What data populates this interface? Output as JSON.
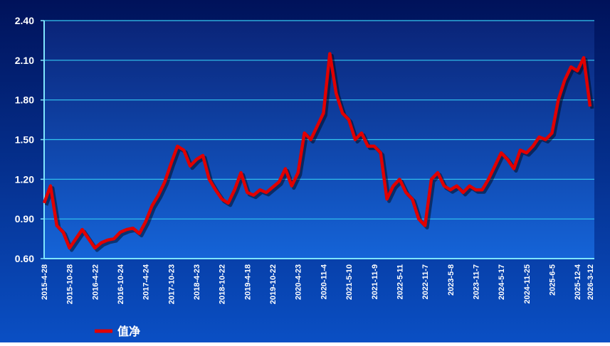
{
  "chart_data": {
    "type": "line",
    "categories": [
      "2015-4-28",
      null,
      null,
      null,
      "2015-10-28",
      null,
      null,
      null,
      "2016-4-22",
      null,
      null,
      null,
      "2016-10-24",
      null,
      null,
      null,
      "2017-4-24",
      null,
      null,
      null,
      "2017-10-23",
      null,
      null,
      null,
      "2018-4-23",
      null,
      null,
      null,
      "2018-10-22",
      null,
      null,
      null,
      "2019-4-18",
      null,
      null,
      null,
      "2019-10-22",
      null,
      null,
      null,
      "2020-4-23",
      null,
      null,
      null,
      "2020-11-4",
      null,
      null,
      null,
      "2021-5-10",
      null,
      null,
      null,
      "2021-11-9",
      null,
      null,
      null,
      "2022-5-11",
      null,
      null,
      null,
      "2022-11-7",
      null,
      null,
      null,
      "2023-5-8",
      null,
      null,
      null,
      "2023-11-7",
      null,
      null,
      null,
      "2024-5-17",
      null,
      null,
      null,
      "2024-11-25",
      null,
      null,
      null,
      "2025-6-5",
      null,
      null,
      null,
      "2025-12-4",
      null,
      "2026-3-12"
    ],
    "series": [
      {
        "name": "值净",
        "color": "#e00000",
        "values": [
          1.02,
          1.15,
          0.85,
          0.8,
          0.68,
          0.75,
          0.82,
          0.75,
          0.68,
          0.72,
          0.74,
          0.75,
          0.8,
          0.82,
          0.83,
          0.79,
          0.88,
          1.0,
          1.08,
          1.18,
          1.32,
          1.45,
          1.42,
          1.3,
          1.35,
          1.38,
          1.2,
          1.12,
          1.05,
          1.02,
          1.12,
          1.25,
          1.1,
          1.08,
          1.12,
          1.1,
          1.14,
          1.18,
          1.28,
          1.15,
          1.25,
          1.55,
          1.5,
          1.6,
          1.7,
          2.15,
          1.85,
          1.7,
          1.65,
          1.5,
          1.55,
          1.45,
          1.45,
          1.4,
          1.05,
          1.15,
          1.2,
          1.1,
          1.05,
          0.9,
          0.85,
          1.2,
          1.25,
          1.15,
          1.12,
          1.15,
          1.1,
          1.15,
          1.12,
          1.12,
          1.2,
          1.3,
          1.4,
          1.35,
          1.28,
          1.42,
          1.4,
          1.45,
          1.52,
          1.5,
          1.55,
          1.8,
          1.95,
          2.05,
          2.02,
          2.12,
          1.75
        ]
      }
    ],
    "ylim": [
      0.6,
      2.4
    ],
    "yticks": [
      {
        "value": 0.6,
        "label": "0.60"
      },
      {
        "value": 0.9,
        "label": "0.90"
      },
      {
        "value": 1.2,
        "label": "1.20"
      },
      {
        "value": 1.5,
        "label": "1.50"
      },
      {
        "value": 1.8,
        "label": "1.80"
      },
      {
        "value": 2.1,
        "label": "2.10"
      },
      {
        "value": 2.4,
        "label": "2.40"
      }
    ],
    "grid": true
  }
}
